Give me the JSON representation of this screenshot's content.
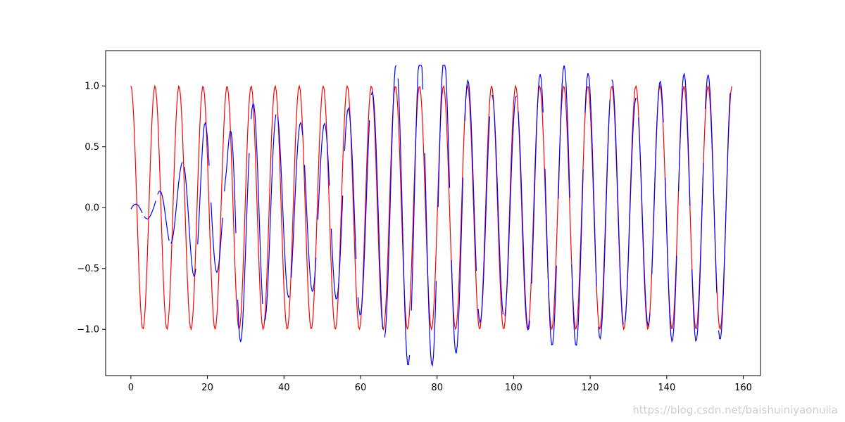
{
  "chart_data": {
    "type": "line",
    "title": "",
    "xlabel": "",
    "ylabel": "",
    "xlim": [
      -6.6,
      164.5
    ],
    "ylim": [
      -1.38,
      1.29
    ],
    "xticks": [
      0,
      20,
      40,
      60,
      80,
      100,
      120,
      140,
      160
    ],
    "xtick_labels": [
      "0",
      "20",
      "40",
      "60",
      "80",
      "100",
      "120",
      "140",
      "160"
    ],
    "yticks": [
      -1.0,
      -0.5,
      0.0,
      0.5,
      1.0
    ],
    "ytick_labels": [
      "−1.0",
      "−0.5",
      "0.0",
      "0.5",
      "1.0"
    ],
    "grid": false,
    "legend": "none",
    "series": [
      {
        "color": "#ff0000",
        "form": "cosine",
        "amplitude": 1.0,
        "period": 6.283,
        "x_range": [
          0,
          157.1
        ]
      },
      {
        "color": "#0000ff",
        "form": "cosine tracking red series; amplitude grows then oscillates around 1.0; piecewise with gaps",
        "x_range": [
          0,
          157.1
        ],
        "y_range": [
          -1.3,
          1.17
        ],
        "envelope": [
          {
            "x": 0,
            "amp": 0.05
          },
          {
            "x": 6,
            "amp": 0.08
          },
          {
            "x": 10,
            "amp": 0.28
          },
          {
            "x": 13,
            "amp": 0.35
          },
          {
            "x": 19,
            "amp": 0.72
          },
          {
            "x": 25,
            "amp": 0.4
          },
          {
            "x": 28,
            "amp": 1.2
          },
          {
            "x": 31,
            "amp": 0.8
          },
          {
            "x": 34,
            "amp": 0.98
          },
          {
            "x": 38,
            "amp": 0.78
          },
          {
            "x": 44,
            "amp": 0.7
          },
          {
            "x": 50,
            "amp": 0.68
          },
          {
            "x": 56,
            "amp": 0.8
          },
          {
            "x": 63,
            "amp": 0.95
          },
          {
            "x": 72,
            "amp": 1.3
          },
          {
            "x": 79,
            "amp": 1.3
          },
          {
            "x": 85,
            "amp": 1.2
          },
          {
            "x": 90,
            "amp": 0.95
          },
          {
            "x": 100,
            "amp": 0.9
          },
          {
            "x": 107,
            "amp": 1.1
          },
          {
            "x": 113,
            "amp": 1.17
          },
          {
            "x": 120,
            "amp": 1.1
          },
          {
            "x": 126,
            "amp": 1.05
          },
          {
            "x": 132,
            "amp": 0.9
          },
          {
            "x": 141,
            "amp": 1.1
          },
          {
            "x": 147,
            "amp": 1.1
          },
          {
            "x": 157,
            "amp": 1.08
          }
        ],
        "offset": [
          {
            "x": 0,
            "y": -0.03
          },
          {
            "x": 14,
            "y": 0.0
          },
          {
            "x": 157,
            "y": 0.0
          }
        ],
        "phase_lag": [
          {
            "x": 0,
            "lag": 1.2
          },
          {
            "x": 20,
            "lag": 0.6
          },
          {
            "x": 60,
            "lag": 0.2
          },
          {
            "x": 157,
            "lag": 0.0
          }
        ]
      }
    ]
  },
  "watermark": "https://blog.csdn.net/baishuiniyaonulia"
}
